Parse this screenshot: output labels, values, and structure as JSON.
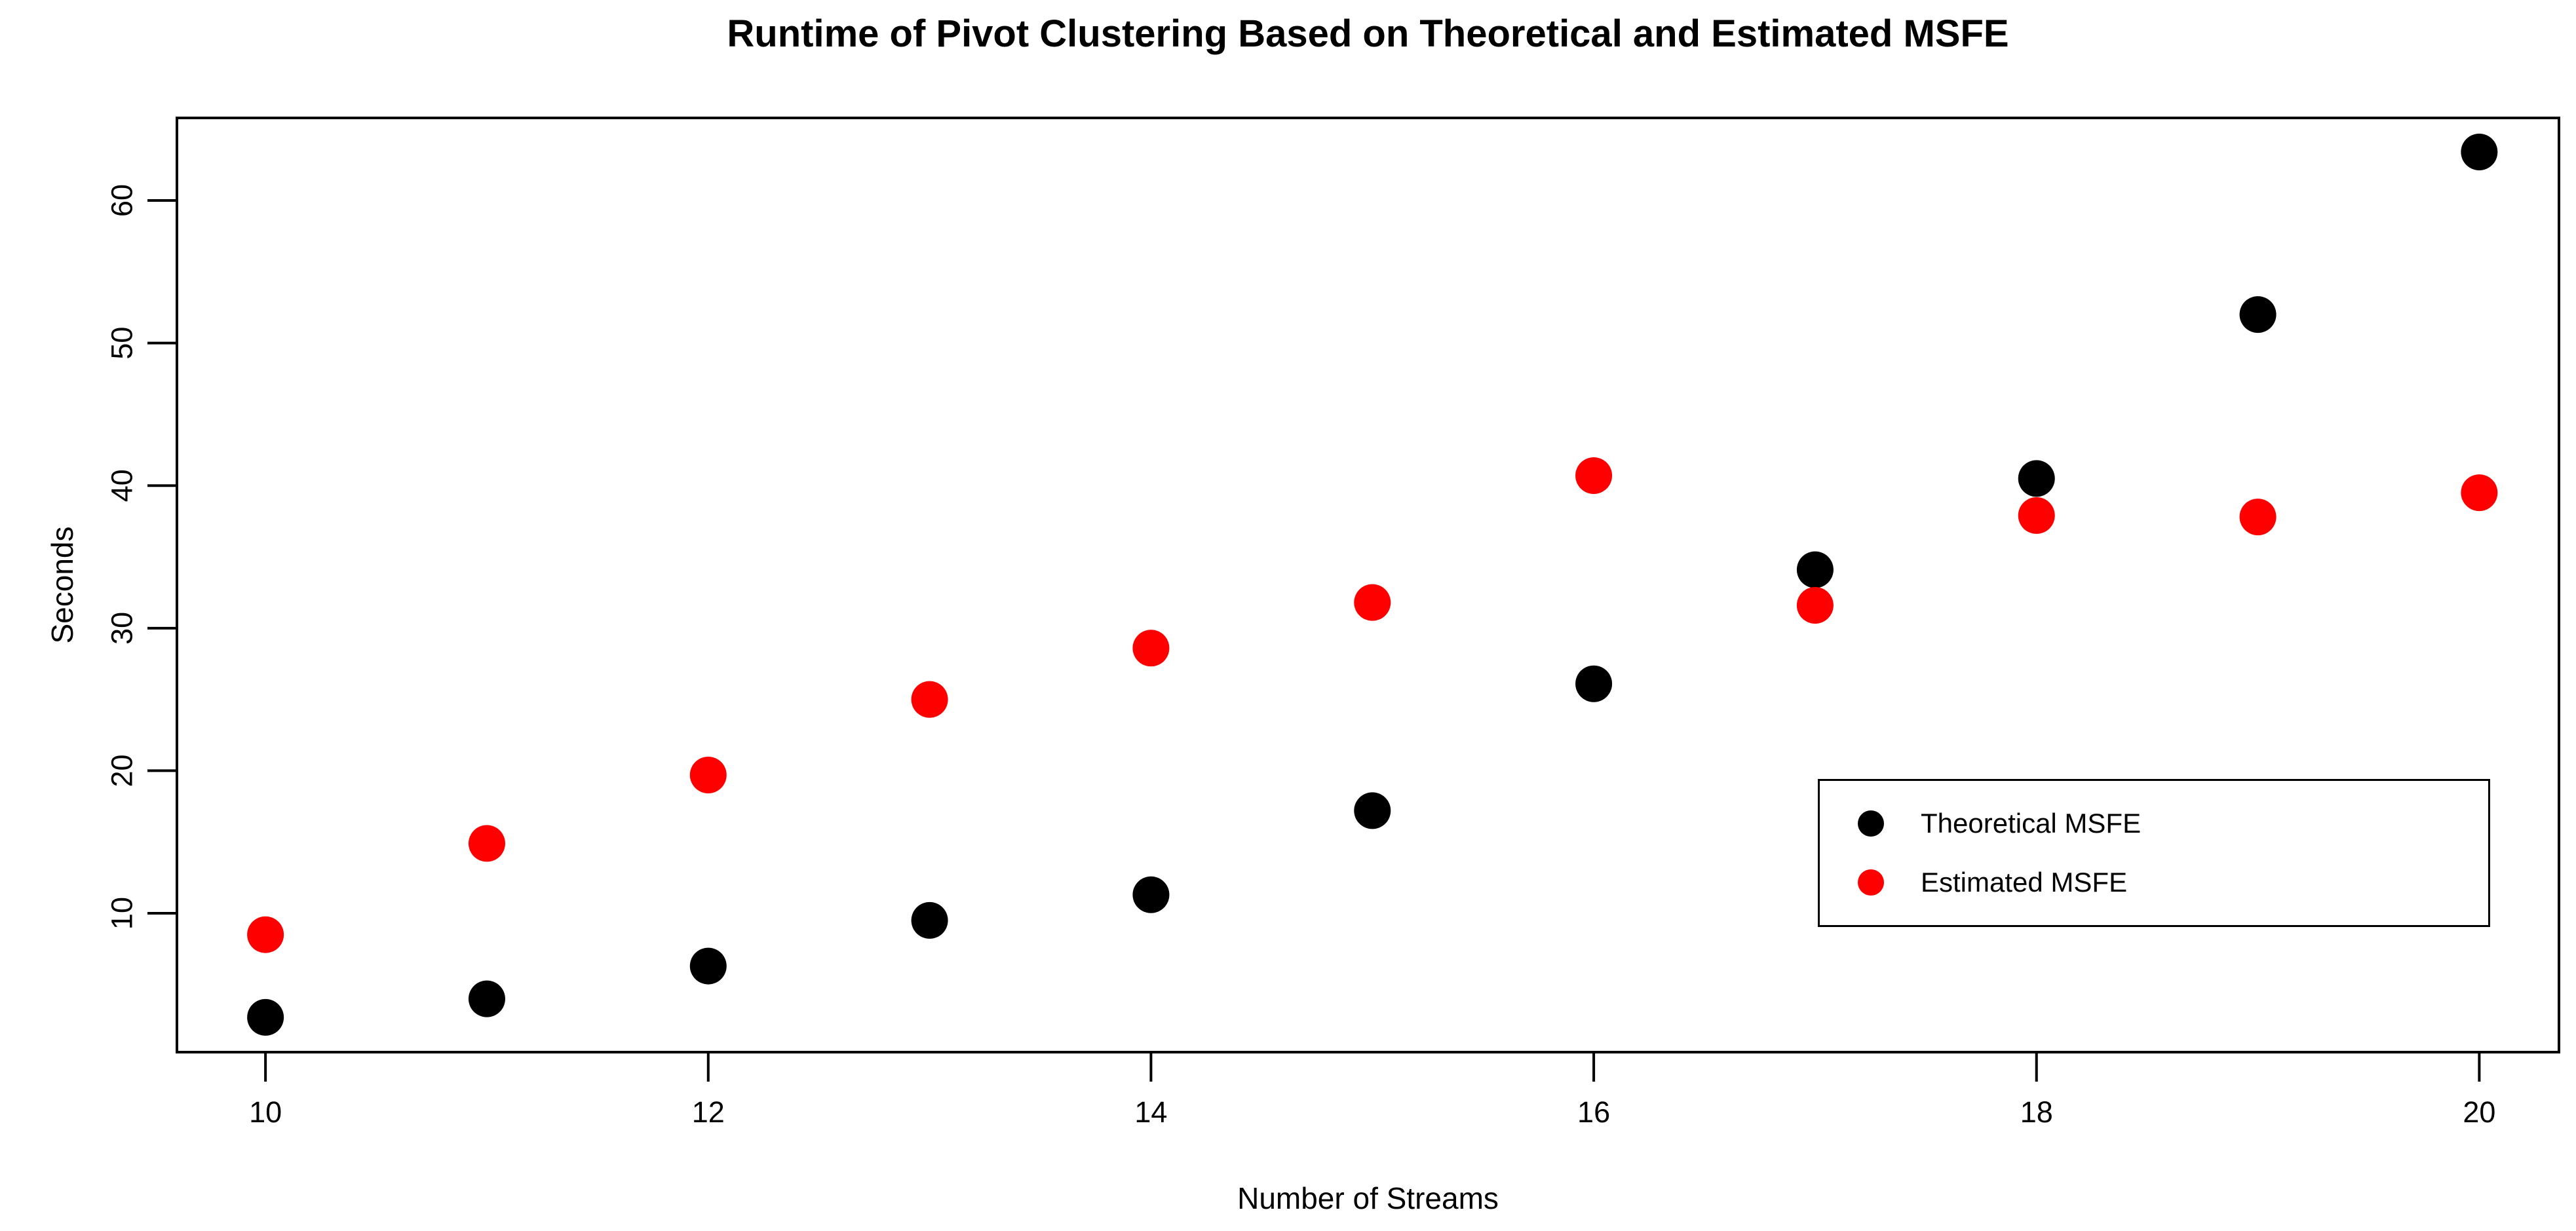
{
  "title": "Runtime of Pivot Clustering Based on Theoretical and Estimated MSFE",
  "chart_data": {
    "type": "scatter",
    "title": "Runtime of Pivot Clustering Based on Theoretical and Estimated MSFE",
    "xlabel": "Number of Streams",
    "ylabel": "Seconds",
    "x": [
      10,
      11,
      12,
      13,
      14,
      15,
      16,
      17,
      18,
      19,
      20
    ],
    "series": [
      {
        "name": "Theoretical MSFE",
        "color": "#000000",
        "values": [
          2.7,
          4.0,
          6.3,
          9.5,
          11.3,
          17.2,
          26.1,
          34.1,
          40.5,
          52.0,
          63.4
        ]
      },
      {
        "name": "Estimated MSFE",
        "color": "#ff0000",
        "values": [
          8.5,
          14.9,
          19.7,
          25.0,
          28.6,
          31.8,
          40.7,
          31.6,
          37.9,
          37.8,
          39.5
        ]
      }
    ],
    "x_ticks": [
      10,
      12,
      14,
      16,
      18,
      20
    ],
    "y_ticks": [
      10,
      20,
      30,
      40,
      50,
      60
    ],
    "xlim": [
      9.6,
      20.36
    ],
    "ylim": [
      0.26,
      65.79
    ],
    "grid": false,
    "legend_position": "inside-right-lower",
    "background": "#ffffff",
    "point_color_black": "#000000",
    "point_color_red": "#ff0000"
  },
  "legend": {
    "items": [
      {
        "label": "Theoretical MSFE",
        "color": "#000000"
      },
      {
        "label": "Estimated MSFE",
        "color": "#ff0000"
      }
    ]
  }
}
